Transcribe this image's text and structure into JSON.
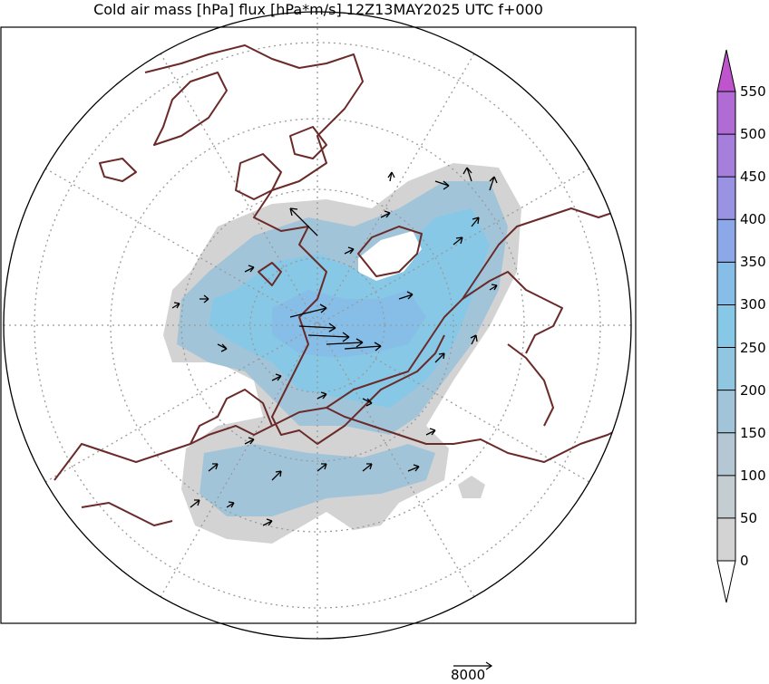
{
  "title": "Cold air mass [hPa] flux [hPa*m/s] 12Z13MAY2025 UTC f+000",
  "reference_vector": {
    "label": "8000"
  },
  "colorbar": {
    "levels": [
      "0",
      "50",
      "100",
      "150",
      "200",
      "250",
      "300",
      "350",
      "400",
      "450",
      "500",
      "550"
    ],
    "colors": [
      "#d3d3d3",
      "#c4cdd2",
      "#b4c7d3",
      "#a2c4d8",
      "#91c6e0",
      "#86c8e6",
      "#86bee8",
      "#8ca8e8",
      "#9a92e2",
      "#a67fdc",
      "#b06bd4",
      "#bf55cc"
    ],
    "under_color": "#ffffff",
    "over_color": "#bf55cc"
  },
  "map": {
    "projection": "north-polar-stereographic",
    "coastline_color": "#6b2a2a",
    "gridline_color": "#9a9a9a",
    "land_outline": "coastlines"
  }
}
